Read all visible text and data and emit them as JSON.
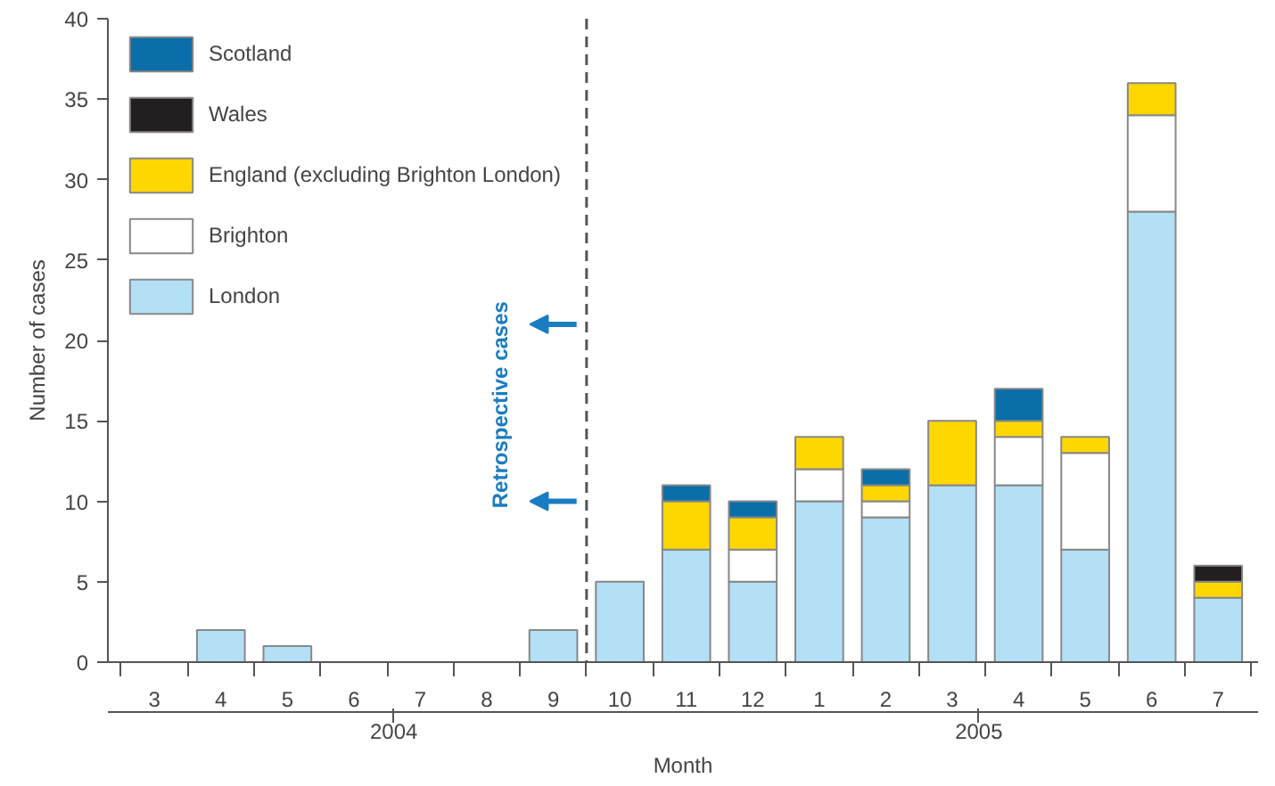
{
  "chart_data": {
    "type": "bar",
    "stacked": true,
    "xlabel": "Month",
    "ylabel": "Number of cases",
    "categories": [
      "3",
      "4",
      "5",
      "6",
      "7",
      "8",
      "9",
      "10",
      "11",
      "12",
      "1",
      "2",
      "3",
      "4",
      "5",
      "6",
      "7"
    ],
    "series": [
      {
        "name": "London",
        "color": "#b3e0f5",
        "values": [
          0,
          2,
          1,
          0,
          0,
          0,
          2,
          5,
          7,
          5,
          10,
          9,
          11,
          11,
          7,
          28,
          4
        ]
      },
      {
        "name": "Brighton",
        "color": "#ffffff",
        "values": [
          0,
          0,
          0,
          0,
          0,
          0,
          0,
          0,
          0,
          2,
          2,
          1,
          0,
          3,
          6,
          6,
          0
        ]
      },
      {
        "name": "England (excluding Brighton London)",
        "color": "#ffd700",
        "values": [
          0,
          0,
          0,
          0,
          0,
          0,
          0,
          0,
          3,
          2,
          2,
          1,
          4,
          1,
          1,
          2,
          1
        ]
      },
      {
        "name": "Wales",
        "color": "#231f20",
        "values": [
          0,
          0,
          0,
          0,
          0,
          0,
          0,
          0,
          0,
          0,
          0,
          0,
          0,
          0,
          0,
          0,
          1
        ]
      },
      {
        "name": "Scotland",
        "color": "#0a6ea8",
        "values": [
          0,
          0,
          0,
          0,
          0,
          0,
          0,
          0,
          1,
          1,
          0,
          1,
          0,
          2,
          0,
          0,
          0
        ]
      }
    ],
    "ylim": [
      0,
      40
    ],
    "yticks": [
      0,
      5,
      10,
      15,
      20,
      25,
      30,
      35,
      40
    ],
    "grid": false,
    "legend": "top left",
    "annotations": [
      "2004",
      "2005",
      "Retrospective cases"
    ]
  }
}
